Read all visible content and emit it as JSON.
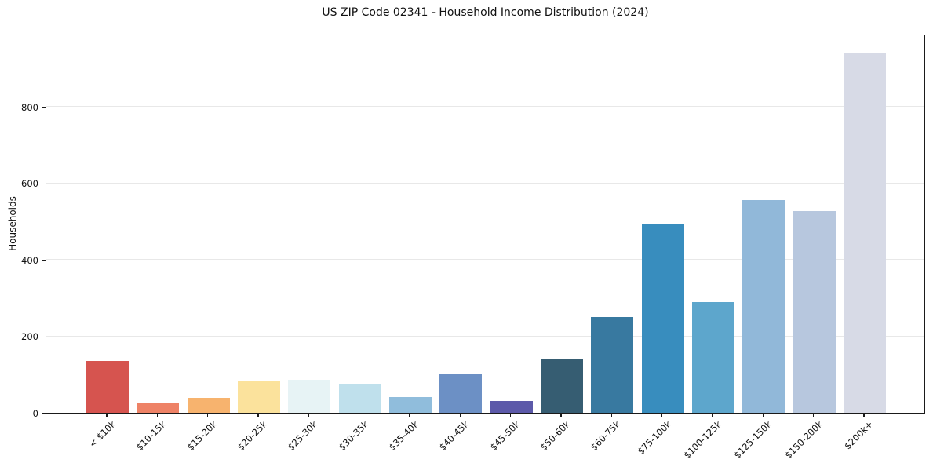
{
  "chart_data": {
    "type": "bar",
    "title": "US ZIP Code 02341 - Household Income Distribution (2024)",
    "xlabel": "",
    "ylabel": "Households",
    "categories": [
      "< $10k",
      "$10-15k",
      "$15-20k",
      "$20-25k",
      "$25-30k",
      "$30-35k",
      "$35-40k",
      "$40-45k",
      "$45-50k",
      "$50-60k",
      "$60-75k",
      "$75-100k",
      "$100-125k",
      "$125-150k",
      "$150-200k",
      "$200k+"
    ],
    "values": [
      135,
      24,
      38,
      84,
      87,
      75,
      41,
      100,
      31,
      141,
      250,
      494,
      289,
      556,
      527,
      941
    ],
    "bar_colors": [
      "#d6544f",
      "#ee8266",
      "#f7b36e",
      "#fbe29c",
      "#e7f3f5",
      "#bfe0ec",
      "#90bddc",
      "#6c90c5",
      "#5c59a9",
      "#365d72",
      "#3879a0",
      "#388dbe",
      "#5da6cc",
      "#91b8d9",
      "#b7c7de",
      "#d7dae6"
    ],
    "ylim": [
      0,
      990
    ],
    "yticks": [
      0,
      200,
      400,
      600,
      800
    ],
    "grid": "horizontal",
    "legend": "none",
    "styling": {
      "background": "#ffffff",
      "gridline_color": "#e8e8e8",
      "spine_color": "#1a1a1a",
      "text_color": "#111111"
    }
  }
}
